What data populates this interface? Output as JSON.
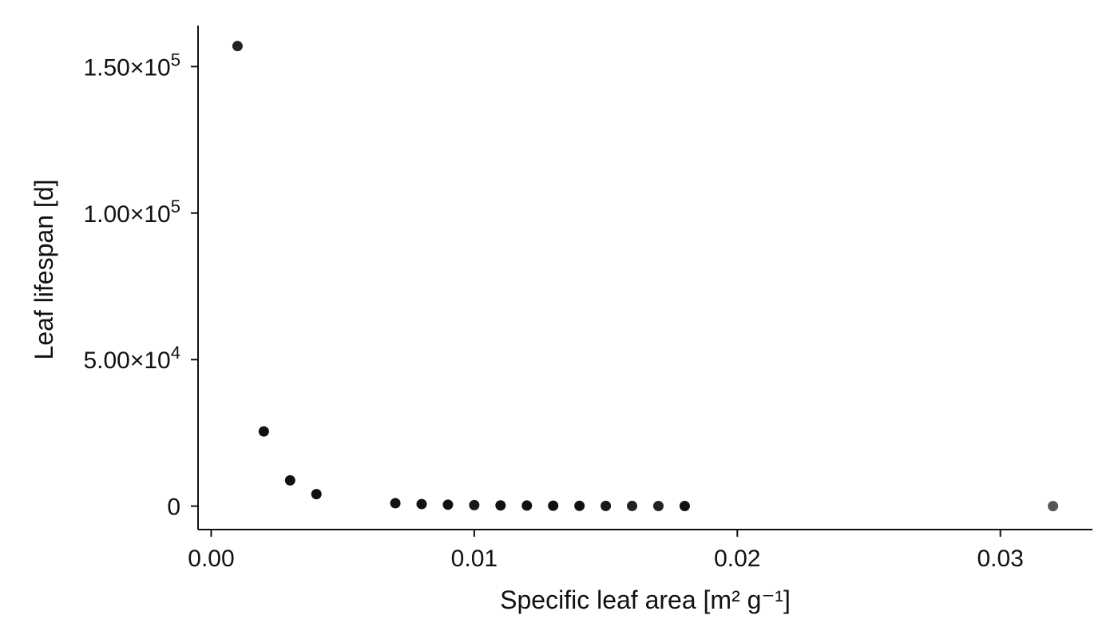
{
  "chart_data": {
    "type": "scatter",
    "title": "",
    "xlabel": "Specific leaf area [m² g⁻¹]",
    "ylabel": "Leaf lifespan [d]",
    "xlim": [
      -0.0005,
      0.0335
    ],
    "ylim": [
      -8000,
      164000
    ],
    "grid": false,
    "legend": "none",
    "x_ticks": [
      {
        "value": 0.0,
        "label": "0.00"
      },
      {
        "value": 0.01,
        "label": "0.01"
      },
      {
        "value": 0.02,
        "label": "0.02"
      },
      {
        "value": 0.03,
        "label": "0.03"
      }
    ],
    "y_ticks": [
      {
        "value": 0,
        "base": "0",
        "exp": ""
      },
      {
        "value": 50000,
        "base": "5.00×10",
        "exp": "4"
      },
      {
        "value": 100000,
        "base": "1.00×10",
        "exp": "5"
      },
      {
        "value": 150000,
        "base": "1.50×10",
        "exp": "5"
      }
    ],
    "points": [
      {
        "x": 0.001,
        "y": 157000,
        "color": "#222222"
      },
      {
        "x": 0.002,
        "y": 25500,
        "color": "#111111"
      },
      {
        "x": 0.003,
        "y": 8800,
        "color": "#111111"
      },
      {
        "x": 0.004,
        "y": 4100,
        "color": "#111111"
      },
      {
        "x": 0.007,
        "y": 1000,
        "color": "#111111"
      },
      {
        "x": 0.008,
        "y": 700,
        "color": "#111111"
      },
      {
        "x": 0.009,
        "y": 500,
        "color": "#111111"
      },
      {
        "x": 0.01,
        "y": 350,
        "color": "#1a1a1a"
      },
      {
        "x": 0.011,
        "y": 250,
        "color": "#111111"
      },
      {
        "x": 0.012,
        "y": 200,
        "color": "#111111"
      },
      {
        "x": 0.013,
        "y": 150,
        "color": "#111111"
      },
      {
        "x": 0.014,
        "y": 100,
        "color": "#111111"
      },
      {
        "x": 0.015,
        "y": 80,
        "color": "#1a1a1a"
      },
      {
        "x": 0.016,
        "y": 60,
        "color": "#222222"
      },
      {
        "x": 0.017,
        "y": 50,
        "color": "#222222"
      },
      {
        "x": 0.018,
        "y": 40,
        "color": "#111111"
      },
      {
        "x": 0.032,
        "y": 5,
        "color": "#555555"
      }
    ]
  }
}
